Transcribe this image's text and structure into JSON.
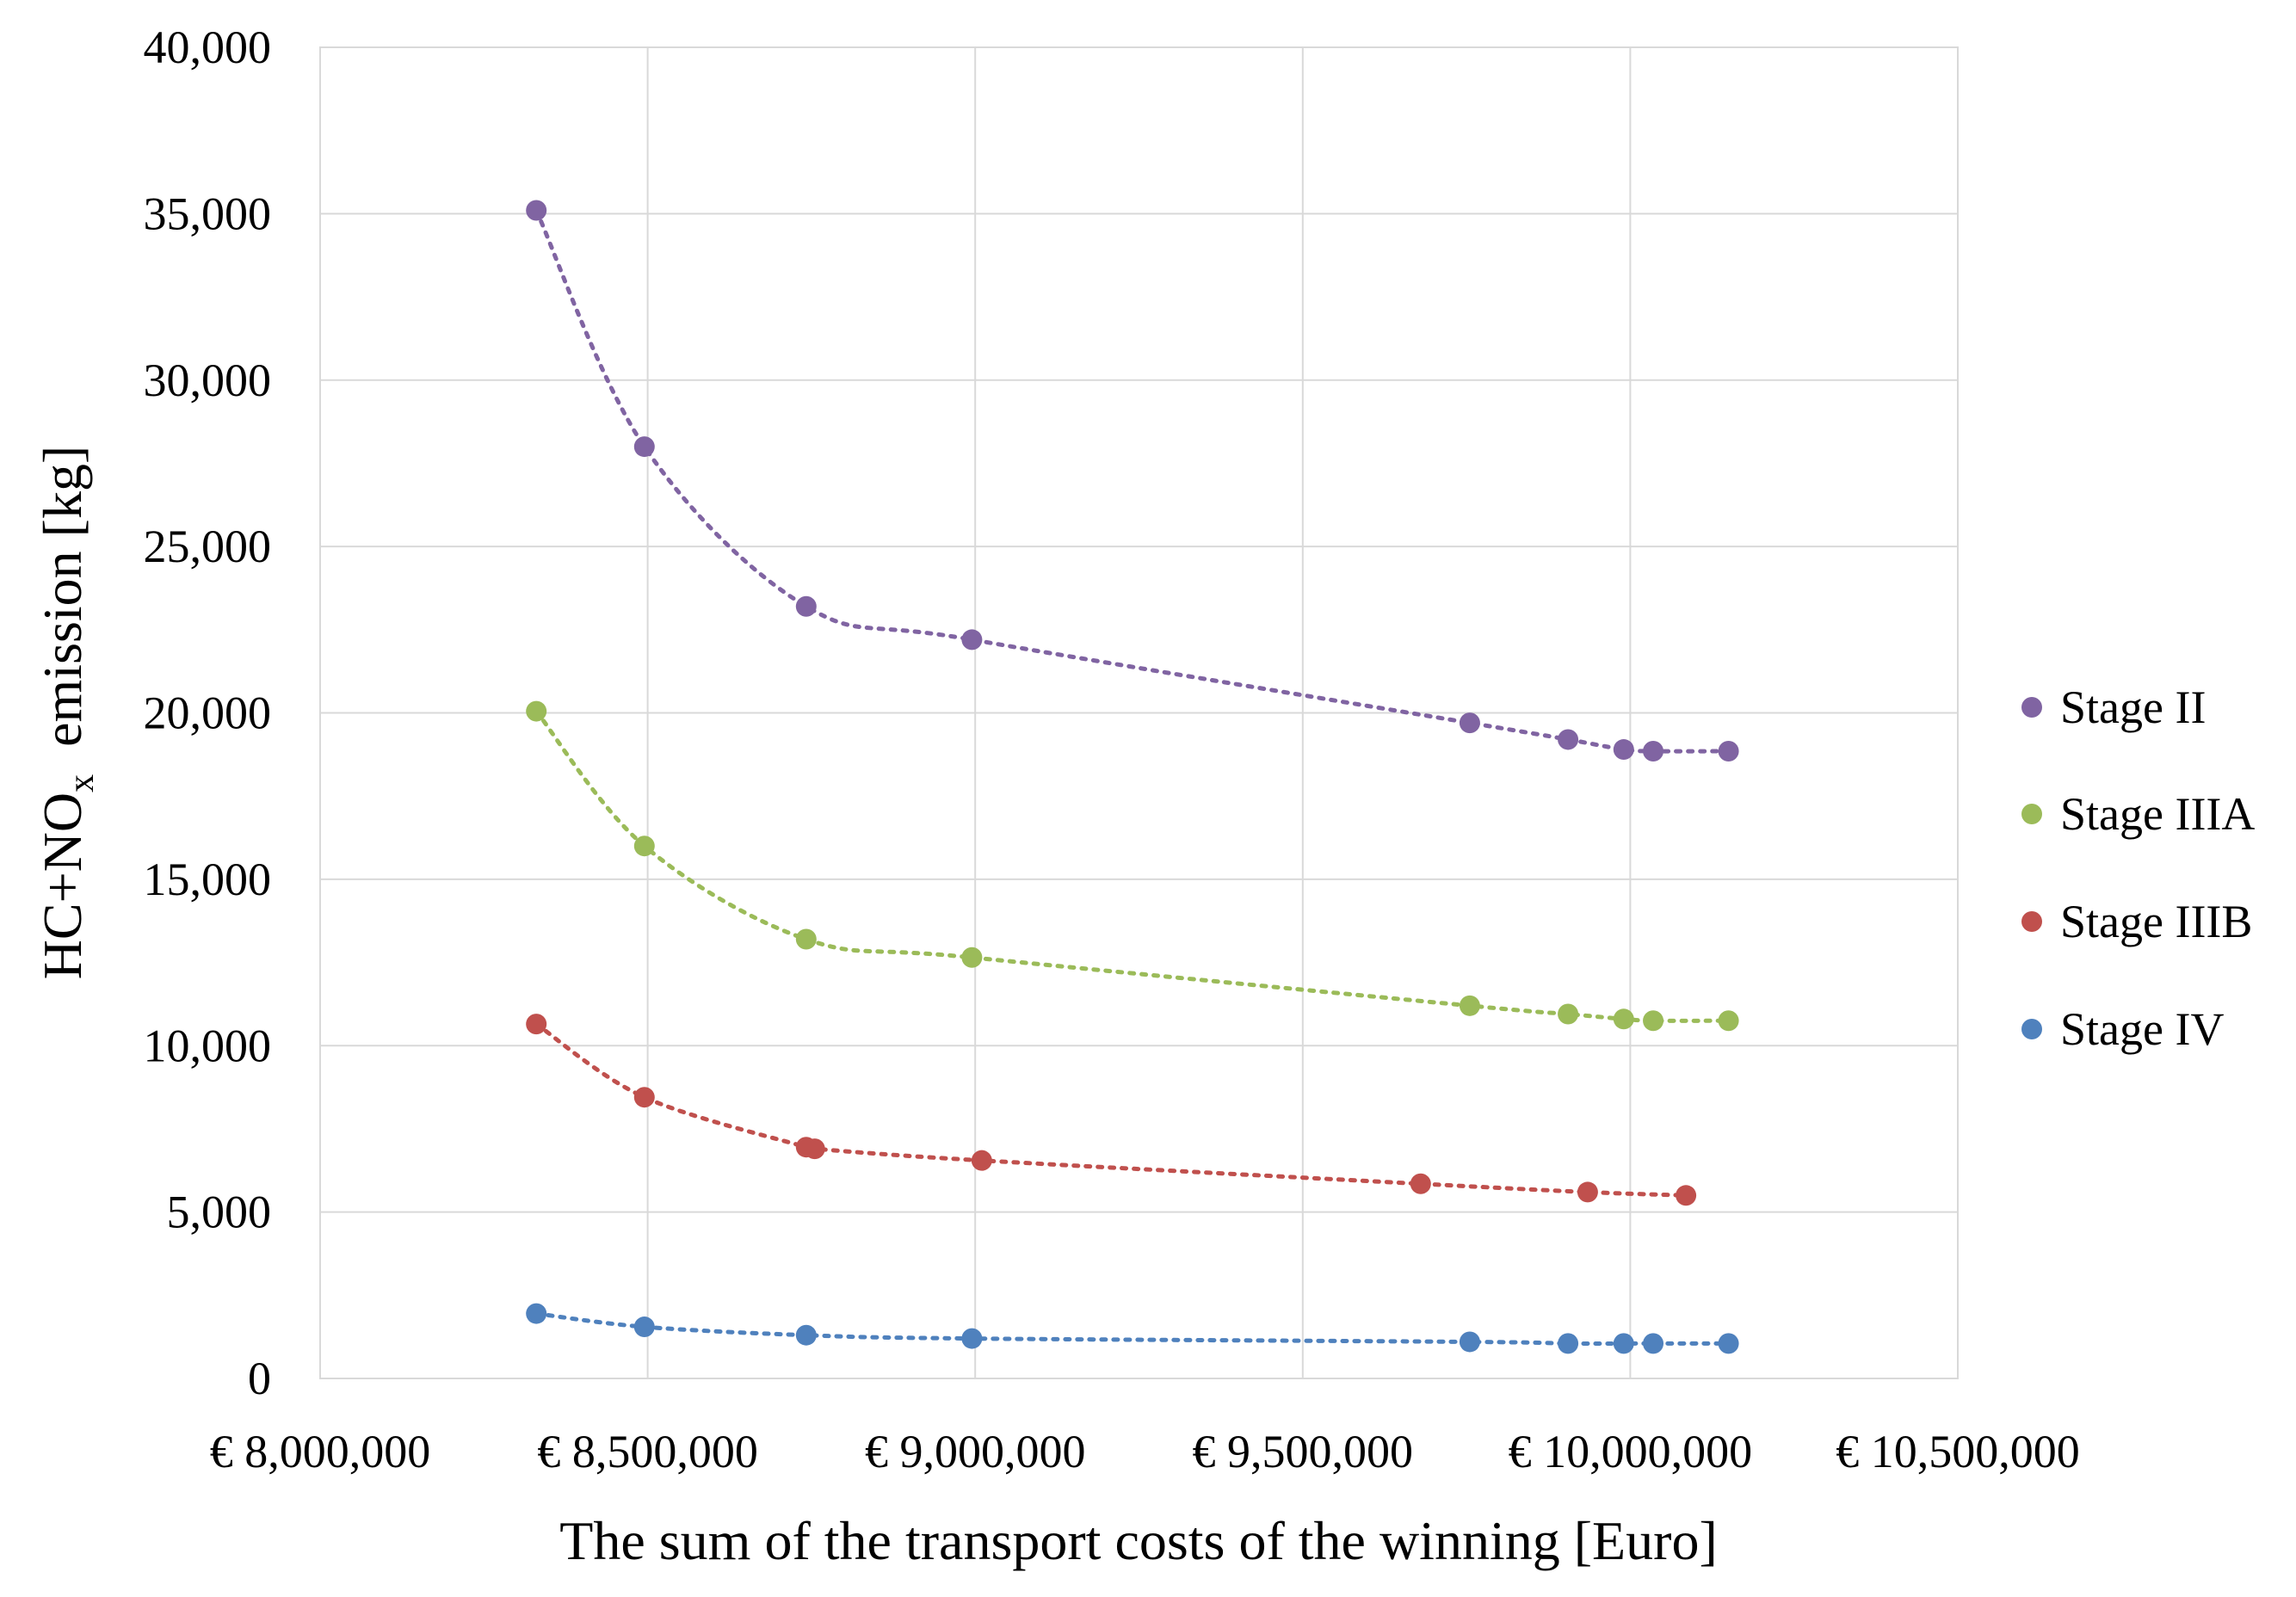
{
  "chart_data": {
    "type": "scatter",
    "title": "",
    "xlabel": "The sum of the transport costs of the winning [Euro]",
    "ylabel": {
      "prefix": "HC+NO",
      "subscript": "x",
      "suffix": "  emission [kg]"
    },
    "xlim": [
      8000000,
      10500000
    ],
    "ylim": [
      0,
      40000
    ],
    "grid": true,
    "legend_position": "right",
    "x_ticks": [
      8000000,
      8500000,
      9000000,
      9500000,
      10000000,
      10500000
    ],
    "x_tick_labels": [
      "€ 8,000,000",
      "€ 8,500,000",
      "€ 9,000,000",
      "€ 9,500,000",
      "€ 10,000,000",
      "€ 10,500,000"
    ],
    "y_ticks": [
      0,
      5000,
      10000,
      15000,
      20000,
      25000,
      30000,
      35000,
      40000
    ],
    "y_tick_labels": [
      "0",
      "5,000",
      "10,000",
      "15,000",
      "20,000",
      "25,000",
      "30,000",
      "35,000",
      "40,000"
    ],
    "series": [
      {
        "name": "Stage II",
        "color": "#8064a2",
        "points": [
          [
            8330000,
            35100
          ],
          [
            8495000,
            28000
          ],
          [
            8742000,
            23200
          ],
          [
            8995000,
            22200
          ],
          [
            9755000,
            19700
          ],
          [
            9905000,
            19200
          ],
          [
            9990000,
            18900
          ],
          [
            10035000,
            18850
          ],
          [
            10150000,
            18850
          ]
        ]
      },
      {
        "name": "Stage IIIA",
        "color": "#9bbb59",
        "points": [
          [
            8330000,
            20050
          ],
          [
            8495000,
            16000
          ],
          [
            8742000,
            13200
          ],
          [
            8995000,
            12650
          ],
          [
            9755000,
            11200
          ],
          [
            9905000,
            10950
          ],
          [
            9990000,
            10800
          ],
          [
            10035000,
            10750
          ],
          [
            10150000,
            10750
          ]
        ]
      },
      {
        "name": "Stage IIIB",
        "color": "#c0504d",
        "points": [
          [
            8330000,
            10650
          ],
          [
            8495000,
            8450
          ],
          [
            8742000,
            6950
          ],
          [
            8755000,
            6900
          ],
          [
            9010000,
            6550
          ],
          [
            9680000,
            5850
          ],
          [
            9935000,
            5600
          ],
          [
            10085000,
            5500
          ]
        ]
      },
      {
        "name": "Stage IV",
        "color": "#4f81bd",
        "points": [
          [
            8330000,
            1950
          ],
          [
            8495000,
            1550
          ],
          [
            8742000,
            1300
          ],
          [
            8995000,
            1200
          ],
          [
            9755000,
            1100
          ],
          [
            9905000,
            1050
          ],
          [
            9990000,
            1050
          ],
          [
            10035000,
            1050
          ],
          [
            10150000,
            1050
          ]
        ]
      }
    ]
  }
}
